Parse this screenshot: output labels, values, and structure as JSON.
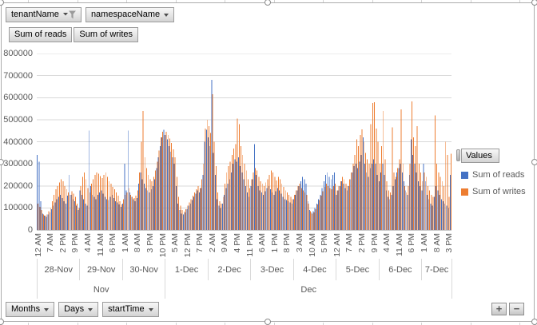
{
  "chart": {
    "top_filter_buttons": [
      {
        "label": "tenantName",
        "filtered": true
      },
      {
        "label": "namespaceName",
        "filtered": false
      }
    ],
    "value_field_buttons": [
      "Sum of reads",
      "Sum of writes"
    ],
    "bottom_axis_buttons": [
      "Months",
      "Days",
      "startTime"
    ],
    "zoom_buttons": {
      "plus": "+",
      "minus": "−"
    }
  },
  "chart_data": {
    "type": "bar",
    "title": "",
    "xlabel": "",
    "ylabel": "",
    "ylim": [
      0,
      800000
    ],
    "y_tick_step": 100000,
    "grid": true,
    "legend_position": "right",
    "legend_title": "Values",
    "x_unit": "hour",
    "hour_tick_interval": 7,
    "hour_tick_labels": [
      "12 AM",
      "7 AM",
      "2 PM",
      "9 PM",
      "4 AM",
      "11 AM",
      "6 PM",
      "1 AM",
      "8 AM",
      "3 PM",
      "10 PM",
      "5 AM",
      "12 PM",
      "7 PM",
      "2 AM",
      "9 AM",
      "4 PM",
      "11 PM",
      "6 AM",
      "1 PM",
      "8 PM",
      "3 AM",
      "10 AM",
      "5 PM",
      "12 AM",
      "7 AM",
      "2 PM",
      "9 PM",
      "4 AM",
      "11 AM",
      "6 PM",
      "1 AM",
      "8 AM",
      "3 PM"
    ],
    "days": [
      {
        "label": "28-Nov",
        "hours": 24
      },
      {
        "label": "29-Nov",
        "hours": 24
      },
      {
        "label": "30-Nov",
        "hours": 24
      },
      {
        "label": "1-Dec",
        "hours": 24
      },
      {
        "label": "2-Dec",
        "hours": 24
      },
      {
        "label": "3-Dec",
        "hours": 24
      },
      {
        "label": "4-Dec",
        "hours": 24
      },
      {
        "label": "5-Dec",
        "hours": 24
      },
      {
        "label": "6-Dec",
        "hours": 24
      },
      {
        "label": "7-Dec",
        "hours": 17
      }
    ],
    "months": [
      {
        "label": "Nov",
        "hours": 72
      },
      {
        "label": "Dec",
        "hours": 161
      }
    ],
    "series": [
      {
        "name": "Sum of reads",
        "color": "#4472C4",
        "values": [
          340000,
          310000,
          130000,
          75000,
          65000,
          60000,
          70000,
          80000,
          95000,
          110000,
          125000,
          140000,
          150000,
          160000,
          145000,
          130000,
          120000,
          155000,
          250000,
          160000,
          140000,
          130000,
          110000,
          90000,
          180000,
          160000,
          140000,
          120000,
          110000,
          450000,
          200000,
          160000,
          150000,
          140000,
          160000,
          170000,
          180000,
          165000,
          150000,
          140000,
          135000,
          150000,
          160000,
          145000,
          130000,
          125000,
          115000,
          105000,
          120000,
          300000,
          180000,
          450000,
          170000,
          150000,
          140000,
          130000,
          145000,
          210000,
          260000,
          230000,
          210000,
          190000,
          180000,
          170000,
          185000,
          200000,
          230000,
          280000,
          330000,
          380000,
          420000,
          455000,
          430000,
          410000,
          380000,
          355000,
          330000,
          300000,
          200000,
          120000,
          90000,
          75000,
          70000,
          80000,
          95000,
          110000,
          120000,
          135000,
          150000,
          165000,
          180000,
          170000,
          190000,
          250000,
          400000,
          455000,
          420000,
          380000,
          680000,
          350000,
          250000,
          140000,
          110000,
          100000,
          120000,
          160000,
          190000,
          210000,
          230000,
          260000,
          300000,
          320000,
          310000,
          330000,
          290000,
          260000,
          230000,
          200000,
          170000,
          150000,
          200000,
          230000,
          390000,
          250000,
          200000,
          180000,
          170000,
          160000,
          175000,
          190000,
          200000,
          185000,
          170000,
          160000,
          175000,
          190000,
          180000,
          165000,
          150000,
          140000,
          135000,
          130000,
          125000,
          120000,
          140000,
          160000,
          180000,
          200000,
          220000,
          240000,
          230000,
          210000,
          130000,
          90000,
          80000,
          85000,
          100000,
          120000,
          140000,
          160000,
          190000,
          220000,
          250000,
          260000,
          240000,
          230000,
          250000,
          260000,
          160000,
          180000,
          200000,
          220000,
          210000,
          190000,
          180000,
          200000,
          230000,
          260000,
          290000,
          300000,
          280000,
          310000,
          340000,
          420000,
          300000,
          260000,
          240000,
          280000,
          300000,
          320000,
          300000,
          250000,
          220000,
          260000,
          300000,
          250000,
          180000,
          150000,
          140000,
          160000,
          200000,
          230000,
          260000,
          280000,
          300000,
          260000,
          220000,
          180000,
          160000,
          250000,
          410000,
          340000,
          300000,
          260000,
          220000,
          200000,
          180000,
          300000,
          220000,
          160000,
          140000,
          120000,
          110000,
          150000,
          200000,
          180000,
          160000,
          140000,
          130000,
          120000,
          110000,
          100000,
          250000
        ]
      },
      {
        "name": "Sum of writes",
        "color": "#ED7D31",
        "values": [
          120000,
          105000,
          90000,
          70000,
          65000,
          70000,
          85000,
          100000,
          130000,
          160000,
          185000,
          200000,
          215000,
          230000,
          220000,
          200000,
          185000,
          170000,
          160000,
          175000,
          165000,
          150000,
          120000,
          100000,
          200000,
          240000,
          260000,
          230000,
          190000,
          170000,
          210000,
          230000,
          250000,
          260000,
          255000,
          245000,
          235000,
          250000,
          260000,
          240000,
          220000,
          210000,
          195000,
          185000,
          170000,
          155000,
          130000,
          115000,
          140000,
          160000,
          170000,
          190000,
          160000,
          150000,
          145000,
          155000,
          180000,
          260000,
          400000,
          540000,
          330000,
          280000,
          250000,
          230000,
          220000,
          240000,
          270000,
          310000,
          360000,
          420000,
          445000,
          430000,
          445000,
          430000,
          415000,
          395000,
          365000,
          330000,
          240000,
          150000,
          110000,
          90000,
          85000,
          95000,
          110000,
          125000,
          140000,
          155000,
          170000,
          185000,
          200000,
          190000,
          230000,
          300000,
          460000,
          500000,
          470000,
          440000,
          615000,
          400000,
          290000,
          170000,
          130000,
          120000,
          150000,
          210000,
          260000,
          290000,
          310000,
          340000,
          370000,
          390000,
          505000,
          480000,
          380000,
          340000,
          300000,
          270000,
          230000,
          190000,
          230000,
          260000,
          280000,
          270000,
          240000,
          220000,
          210000,
          200000,
          215000,
          230000,
          250000,
          270000,
          260000,
          240000,
          225000,
          240000,
          230000,
          210000,
          195000,
          180000,
          170000,
          160000,
          150000,
          140000,
          160000,
          180000,
          200000,
          210000,
          190000,
          180000,
          170000,
          160000,
          120000,
          85000,
          75000,
          80000,
          95000,
          115000,
          135000,
          155000,
          175000,
          195000,
          210000,
          200000,
          190000,
          185000,
          200000,
          210000,
          180000,
          200000,
          220000,
          240000,
          230000,
          210000,
          200000,
          230000,
          260000,
          300000,
          340000,
          410000,
          380000,
          430000,
          456000,
          400000,
          350000,
          320000,
          300000,
          480000,
          575000,
          580000,
          460000,
          400000,
          300000,
          380000,
          540000,
          320000,
          220000,
          180000,
          170000,
          465000,
          260000,
          240000,
          280000,
          320000,
          547000,
          300000,
          200000,
          170000,
          200000,
          300000,
          583000,
          420000,
          380000,
          470000,
          300000,
          260000,
          220000,
          260000,
          240000,
          200000,
          180000,
          160000,
          150000,
          520000,
          300000,
          260000,
          240000,
          220000,
          200000,
          400000,
          340000,
          150000,
          345000
        ]
      }
    ]
  }
}
